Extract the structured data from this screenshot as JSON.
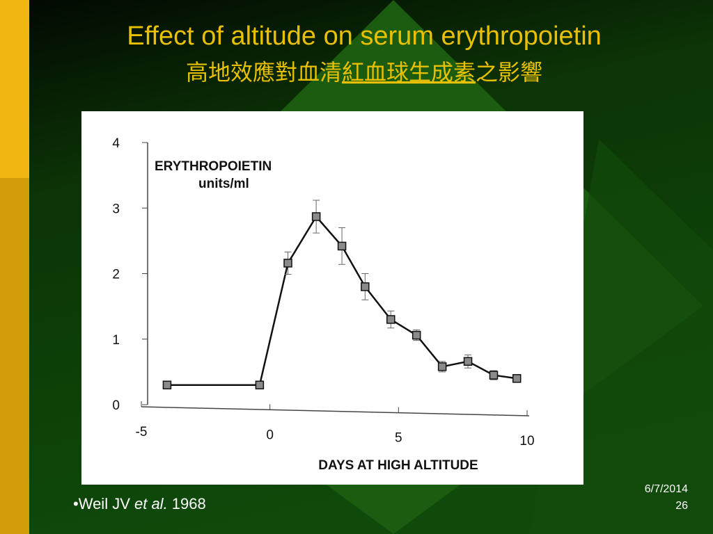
{
  "slide": {
    "title": "Effect of altitude on serum erythropoietin",
    "title_zh": [
      "高地效應對血清",
      "紅血球生成素",
      "之影響"
    ],
    "citation": [
      "•Weil JV ",
      "et al.",
      " 1968"
    ],
    "date": "6/7/2014",
    "page": "26"
  },
  "chart_data": {
    "type": "line",
    "y_label": [
      "ERYTHROPOIETIN",
      "units/ml"
    ],
    "x_label": "DAYS AT HIGH ALTITUDE",
    "x": [
      -4,
      -0.4,
      0.7,
      1.8,
      2.8,
      3.7,
      4.7,
      5.7,
      6.7,
      7.7,
      8.7,
      9.6
    ],
    "values": [
      0.3,
      0.3,
      2.16,
      2.87,
      2.42,
      1.8,
      1.3,
      1.06,
      0.58,
      0.66,
      0.45,
      0.4
    ],
    "errors": [
      0.03,
      0.04,
      0.17,
      0.25,
      0.28,
      0.2,
      0.13,
      0.08,
      0.08,
      0.1,
      0.07,
      0.05
    ],
    "color": "#111111",
    "marker_color": "#8a8a8a",
    "xlim": [
      -5,
      10
    ],
    "ylim": [
      0,
      4
    ],
    "xticks": [
      -5,
      0,
      5,
      10
    ],
    "yticks": [
      0,
      1,
      2,
      3,
      4
    ]
  }
}
